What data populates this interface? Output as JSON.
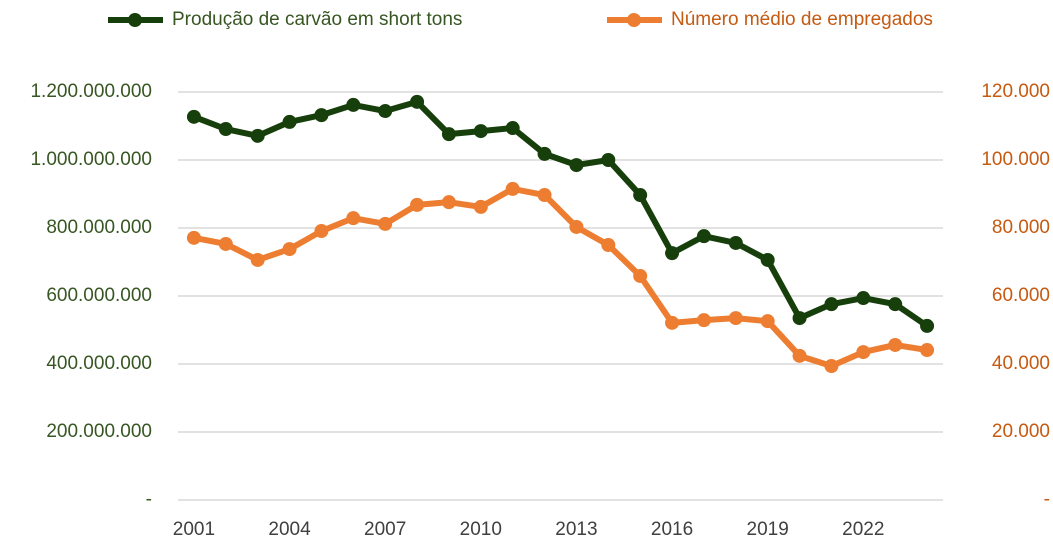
{
  "chart_data": {
    "type": "line",
    "x": [
      2001,
      2002,
      2003,
      2004,
      2005,
      2006,
      2007,
      2008,
      2009,
      2010,
      2011,
      2012,
      2013,
      2014,
      2015,
      2016,
      2017,
      2018,
      2019,
      2020,
      2021,
      2022,
      2023,
      2024
    ],
    "xlim": [
      2000.5,
      2024.5
    ],
    "xticks": [
      2001,
      2004,
      2007,
      2010,
      2013,
      2016,
      2019,
      2022
    ],
    "series": [
      {
        "name": "Produção de carvão em short tons",
        "color": "#173f0c",
        "values": [
          1127000000,
          1091000000,
          1071000000,
          1112000000,
          1132000000,
          1162000000,
          1144000000,
          1171000000,
          1076000000,
          1085000000,
          1094000000,
          1018000000,
          985000000,
          1000000000,
          897000000,
          726000000,
          776000000,
          756000000,
          706000000,
          535000000,
          576000000,
          594000000,
          576000000,
          512000000
        ]
      },
      {
        "name": "Número médio de empregados",
        "color": "#ed7d31",
        "axis": "y2",
        "values": [
          77100,
          75300,
          70600,
          73800,
          79100,
          82900,
          81200,
          86800,
          87600,
          86200,
          91500,
          89700,
          80300,
          75000,
          65900,
          52100,
          52900,
          53500,
          52600,
          42400,
          39400,
          43500,
          45600,
          44100
        ]
      }
    ],
    "ylim": [
      0,
      1200000000
    ],
    "yticks": [
      {
        "value": 0,
        "label": "-"
      },
      {
        "value": 200000000,
        "label": "200.000.000"
      },
      {
        "value": 400000000,
        "label": "400.000.000"
      },
      {
        "value": 600000000,
        "label": "600.000.000"
      },
      {
        "value": 800000000,
        "label": "800.000.000"
      },
      {
        "value": 1000000000,
        "label": "1.000.000.000"
      },
      {
        "value": 1200000000,
        "label": "1.200.000.000"
      }
    ],
    "y2lim": [
      0,
      120000
    ],
    "y2ticks": [
      {
        "value": 0,
        "label": "-"
      },
      {
        "value": 20000,
        "label": "20.000"
      },
      {
        "value": 40000,
        "label": "40.000"
      },
      {
        "value": 60000,
        "label": "60.000"
      },
      {
        "value": 80000,
        "label": "80.000"
      },
      {
        "value": 100000,
        "label": "100.000"
      },
      {
        "value": 120000,
        "label": "120.000"
      }
    ],
    "grid": true,
    "legend": "top"
  }
}
